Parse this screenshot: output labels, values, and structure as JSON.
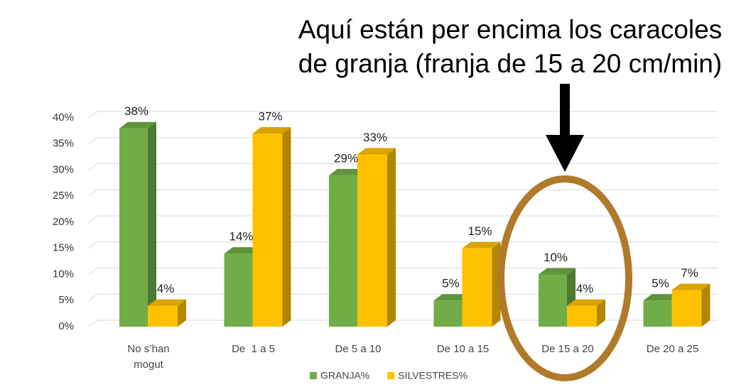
{
  "chart_data": {
    "type": "bar",
    "annotation": [
      "Aquí están per encima los caracoles",
      "de granja (franja de 15 a 20 cm/min)"
    ],
    "categories": [
      "No s’han mogut",
      "De  1 a 5",
      "De 5 a 10",
      "De 10 a 15",
      "De 15 a 20",
      "De 20 a 25"
    ],
    "series": [
      {
        "name": "GRANJA%",
        "color": "#70ad47",
        "values": [
          38,
          14,
          29,
          5,
          10,
          5
        ],
        "value_labels": [
          "38%",
          "14%",
          "29%",
          "5%",
          "10%",
          "5%"
        ]
      },
      {
        "name": "SILVESTRES%",
        "color": "#ffc000",
        "values": [
          4,
          37,
          33,
          15,
          4,
          7
        ],
        "value_labels": [
          "4%",
          "37%",
          "33%",
          "15%",
          "4%",
          "7%"
        ]
      }
    ],
    "ylim": [
      0,
      40
    ],
    "yticks": [
      {
        "value": 0,
        "label": "0%"
      },
      {
        "value": 5,
        "label": "5%"
      },
      {
        "value": 10,
        "label": "10%"
      },
      {
        "value": 15,
        "label": "15%"
      },
      {
        "value": 20,
        "label": "20%"
      },
      {
        "value": 25,
        "label": "25%"
      },
      {
        "value": 30,
        "label": "30%"
      },
      {
        "value": 35,
        "label": "35%"
      },
      {
        "value": 40,
        "label": "40%"
      }
    ],
    "grid": true,
    "legend": "bottom"
  }
}
